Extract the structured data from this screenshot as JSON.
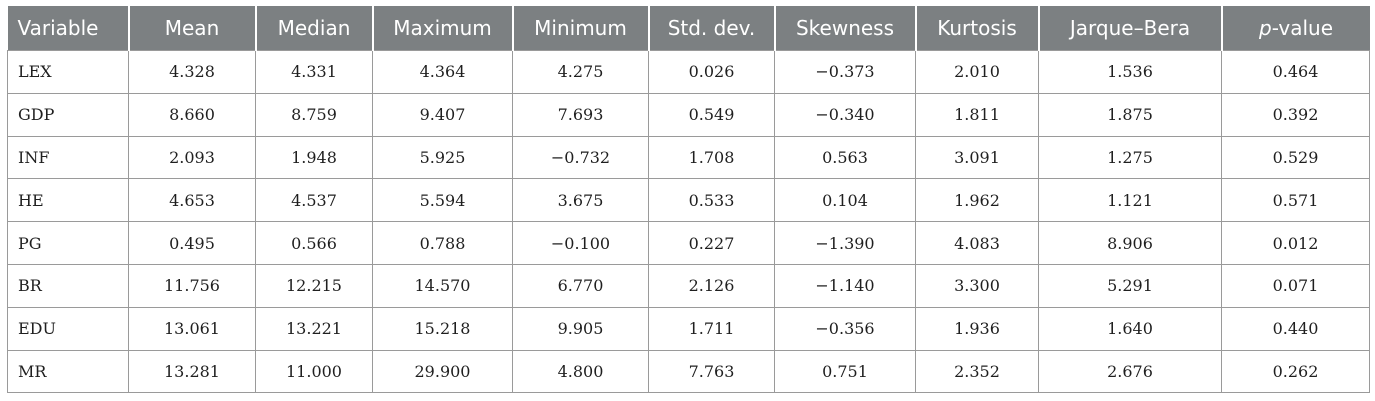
{
  "table": {
    "columns": [
      "Variable",
      "Mean",
      "Median",
      "Maximum",
      "Minimum",
      "Std. dev.",
      "Skewness",
      "Kurtosis",
      "Jarque–Bera",
      "p-value"
    ],
    "pvalue_header": {
      "italic_part": "p",
      "rest": "-value"
    },
    "rows": [
      [
        "LEX",
        "4.328",
        "4.331",
        "4.364",
        "4.275",
        "0.026",
        "−0.373",
        "2.010",
        "1.536",
        "0.464"
      ],
      [
        "GDP",
        "8.660",
        "8.759",
        "9.407",
        "7.693",
        "0.549",
        "−0.340",
        "1.811",
        "1.875",
        "0.392"
      ],
      [
        "INF",
        "2.093",
        "1.948",
        "5.925",
        "−0.732",
        "1.708",
        "0.563",
        "3.091",
        "1.275",
        "0.529"
      ],
      [
        "HE",
        "4.653",
        "4.537",
        "5.594",
        "3.675",
        "0.533",
        "0.104",
        "1.962",
        "1.121",
        "0.571"
      ],
      [
        "PG",
        "0.495",
        "0.566",
        "0.788",
        "−0.100",
        "0.227",
        "−1.390",
        "4.083",
        "8.906",
        "0.012"
      ],
      [
        "BR",
        "11.756",
        "12.215",
        "14.570",
        "6.770",
        "2.126",
        "−1.140",
        "3.300",
        "5.291",
        "0.071"
      ],
      [
        "EDU",
        "13.061",
        "13.221",
        "15.218",
        "9.905",
        "1.711",
        "−0.356",
        "1.936",
        "1.640",
        "0.440"
      ],
      [
        "MR",
        "13.281",
        "11.000",
        "29.900",
        "4.800",
        "7.763",
        "0.751",
        "2.352",
        "2.676",
        "0.262"
      ]
    ]
  }
}
